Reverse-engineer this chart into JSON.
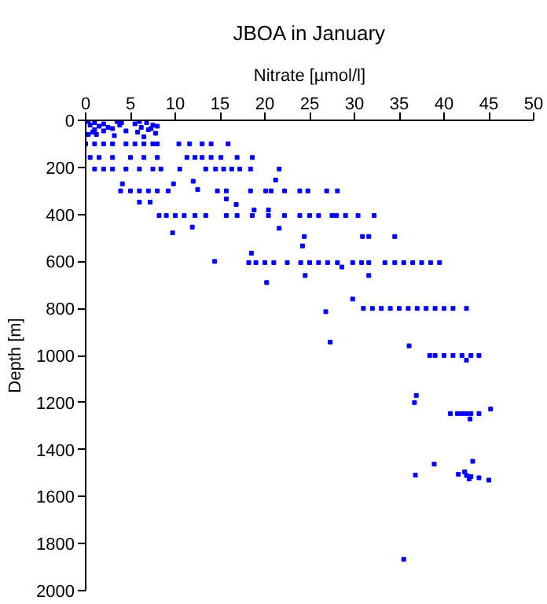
{
  "chart_data": {
    "type": "scatter",
    "title": "JBOA in January",
    "xlabel": "Nitrate [µmol/l]",
    "ylabel": "Depth [m]",
    "xlim": [
      0,
      50
    ],
    "xticks": [
      0,
      5,
      10,
      15,
      20,
      25,
      30,
      35,
      40,
      45,
      50
    ],
    "ylim": [
      2000,
      0
    ],
    "yticks": [
      0,
      200,
      400,
      600,
      800,
      1000,
      1200,
      1400,
      1600,
      1800,
      2000
    ],
    "grid": false,
    "marker": "square",
    "series": [
      {
        "color": "#0000ff",
        "x": [
          0.3,
          1,
          2,
          0.5,
          1.5,
          2.5,
          3,
          3.5,
          4,
          3.8,
          1,
          2,
          0.8,
          1.2,
          3.2,
          5.5,
          6,
          6.8,
          7.5,
          6.2,
          7,
          5.8,
          7.8,
          8,
          6.5,
          4.5,
          0.3,
          7.3,
          0,
          1,
          2,
          3,
          4.5,
          5.5,
          6.5,
          7.5,
          8,
          10.4,
          11.6,
          13,
          14,
          15.9,
          0.5,
          1.5,
          3,
          5,
          6.5,
          8,
          11.3,
          12.2,
          13,
          14,
          15.1,
          16.9,
          18.6,
          1,
          2,
          3,
          4.5,
          6,
          7.5,
          8.4,
          10.5,
          13.4,
          14.5,
          15.4,
          16.3,
          17.2,
          18.4,
          21.6,
          21.2,
          12,
          9.8,
          4.1,
          12.5,
          3.9,
          5,
          6,
          7,
          8,
          9.2,
          14.7,
          15.7,
          18.4,
          20.1,
          20.7,
          22.2,
          23.9,
          24.8,
          26.9,
          28.1,
          15.7,
          6,
          7.2,
          16.8,
          18.8,
          20.4,
          8.2,
          9,
          10,
          11,
          12.2,
          13.4,
          15.7,
          16.9,
          18.6,
          20.4,
          22.2,
          23.9,
          25,
          26,
          27.5,
          28,
          29,
          30.4,
          32.2,
          11.9,
          21.6,
          9.7,
          24.4,
          30.9,
          31.6,
          34.5,
          24.2,
          18.5,
          14.4,
          18.2,
          19,
          20,
          21,
          22.5,
          24,
          25,
          26,
          27,
          28.1,
          29.8,
          30.8,
          31.6,
          33.4,
          34.5,
          35.5,
          36.5,
          37.5,
          38.5,
          39.5,
          28.6,
          24.5,
          31.6,
          20.2,
          29.8,
          26.8,
          27.3,
          31,
          32,
          33,
          34,
          35,
          36,
          37,
          38,
          39,
          40,
          41,
          42.5,
          36.1,
          38.4,
          39,
          40,
          41,
          42,
          43,
          43.9,
          42.5,
          36.9,
          36.7,
          40.7,
          41.5,
          42,
          42.5,
          43,
          43.9,
          42.9,
          45.2,
          43.2,
          38.9,
          36.8,
          41.6,
          42.5,
          43,
          43.9,
          42.8,
          42.3,
          45,
          35.5
        ],
        "values": [
          5,
          10,
          15,
          20,
          25,
          30,
          35,
          5,
          10,
          20,
          40,
          45,
          50,
          60,
          65,
          15,
          5,
          10,
          20,
          30,
          40,
          50,
          55,
          25,
          70,
          45,
          60,
          35,
          100,
          100,
          100,
          100,
          100,
          100,
          100,
          100,
          100,
          100,
          100,
          100,
          100,
          100,
          158,
          158,
          158,
          158,
          158,
          158,
          158,
          158,
          158,
          158,
          158,
          158,
          158,
          207,
          207,
          207,
          207,
          207,
          207,
          207,
          207,
          207,
          207,
          207,
          207,
          207,
          207,
          207,
          254,
          259,
          270,
          270,
          294,
          300,
          300,
          300,
          300,
          300,
          300,
          300,
          300,
          300,
          300,
          300,
          300,
          300,
          300,
          300,
          300,
          334,
          348,
          348,
          358,
          381,
          381,
          405,
          405,
          405,
          405,
          405,
          405,
          405,
          405,
          405,
          405,
          405,
          405,
          405,
          405,
          405,
          405,
          405,
          405,
          405,
          454,
          459,
          478,
          494,
          494,
          494,
          494,
          534,
          565,
          600,
          605,
          605,
          605,
          605,
          605,
          605,
          605,
          605,
          605,
          605,
          605,
          605,
          605,
          605,
          605,
          605,
          605,
          605,
          605,
          605,
          624,
          660,
          660,
          690,
          760,
          814,
          943,
          800,
          800,
          800,
          800,
          800,
          800,
          800,
          800,
          800,
          800,
          800,
          800,
          959,
          1000,
          1000,
          1000,
          1000,
          1000,
          1000,
          1000,
          1020,
          1170,
          1200,
          1247,
          1247,
          1247,
          1247,
          1247,
          1247,
          1270,
          1228,
          1450,
          1462,
          1509,
          1505,
          1510,
          1515,
          1520,
          1525,
          1495,
          1530,
          1867
        ]
      }
    ]
  }
}
